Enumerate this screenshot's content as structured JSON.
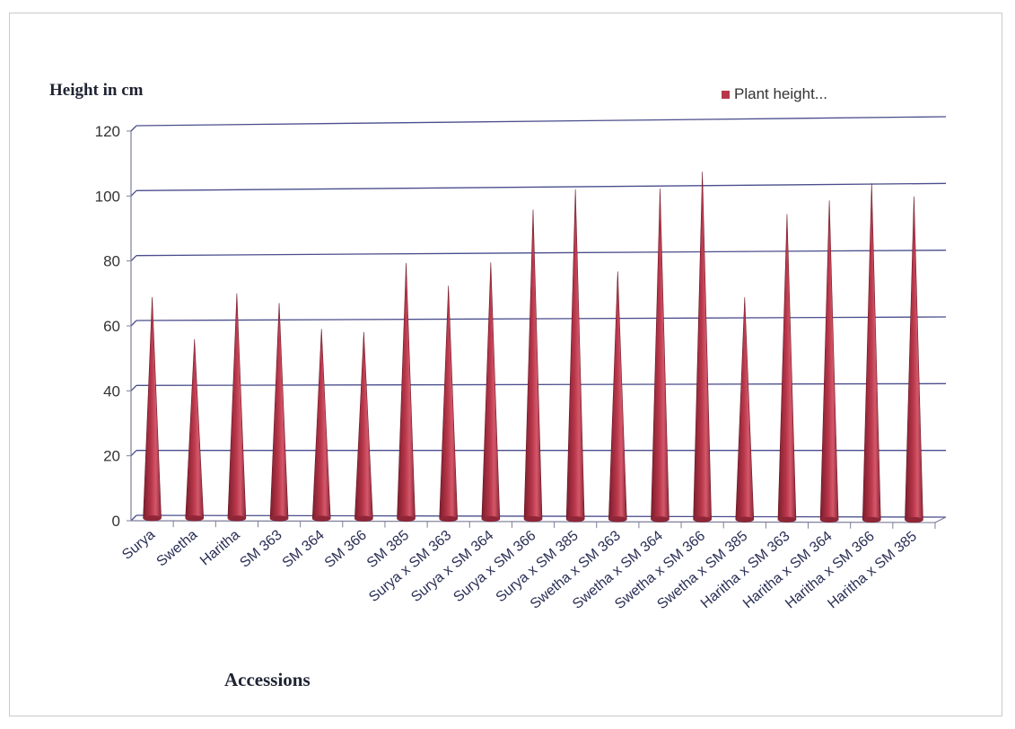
{
  "chart_data": {
    "type": "bar",
    "title": "",
    "ylabel": "Height in cm",
    "xlabel": "Accessions",
    "ylim": [
      0,
      120
    ],
    "yticks": [
      0,
      20,
      40,
      60,
      80,
      100,
      120
    ],
    "grid": true,
    "legend_position": "top-right",
    "bar_shape": "cone-3d",
    "categories": [
      "Surya",
      "Swetha",
      "Haritha",
      "SM 363",
      "SM 364",
      "SM 366",
      "SM 385",
      "Surya x SM 363",
      "Surya x SM 364",
      "Surya x SM 366",
      "Surya x SM 385",
      "Swetha x SM 363",
      "Swetha x SM 364",
      "Swetha x SM 366",
      "Swetha x SM 385",
      "Haritha x SM 363",
      "Haritha x SM 364",
      "Haritha x SM 366",
      "Haritha x SM 385"
    ],
    "series": [
      {
        "name": "Plant height...",
        "color": "#b8364a",
        "values": [
          68,
          55,
          69,
          66,
          58,
          57,
          78,
          71,
          78,
          94,
          100,
          75,
          100,
          105,
          67,
          92,
          96,
          101,
          97
        ]
      }
    ]
  },
  "colors": {
    "bar": "#b8364a",
    "grid": "#4a4e8c",
    "text": "#1f2433"
  }
}
